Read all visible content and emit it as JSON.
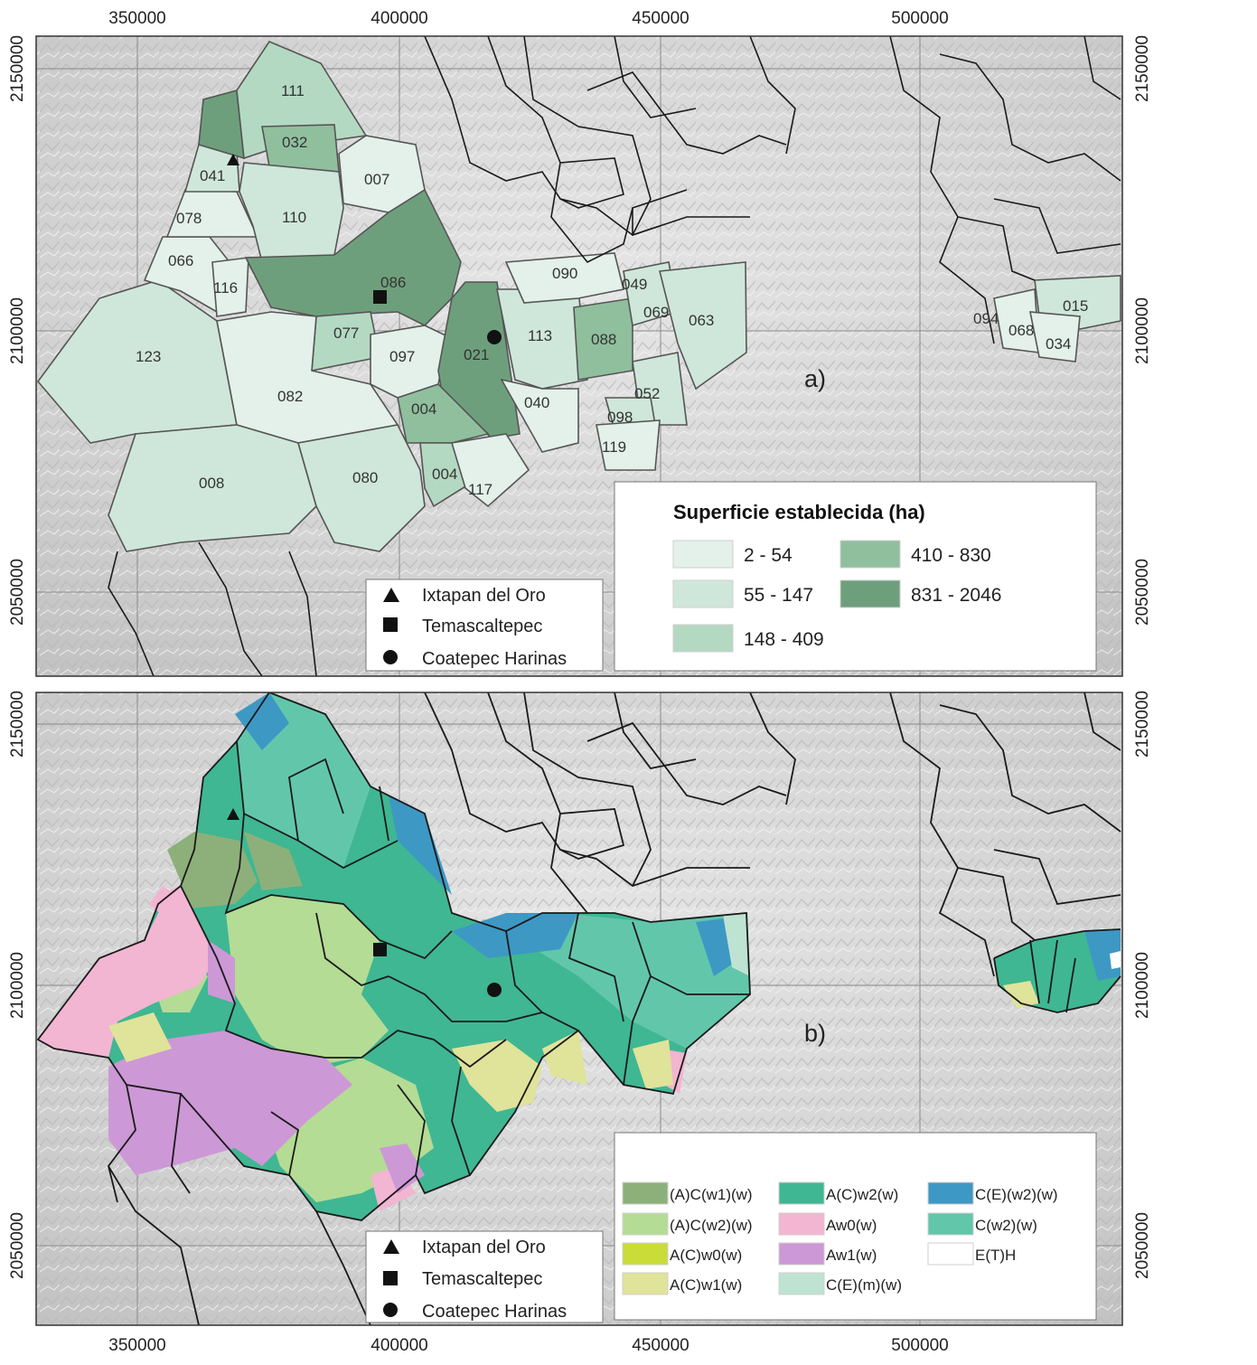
{
  "x_ticks": [
    "350000",
    "400000",
    "450000",
    "500000"
  ],
  "y_ticks": [
    "2150000",
    "2100000",
    "2050000"
  ],
  "panel_a": {
    "tag": "a)",
    "legend_title": "Superficie establecida (ha)",
    "classes": [
      {
        "label": "2 - 54",
        "color": "#e3f1ea"
      },
      {
        "label": "55 - 147",
        "color": "#cfe7da"
      },
      {
        "label": "148 - 409",
        "color": "#b4d9c2"
      },
      {
        "label": "410 - 830",
        "color": "#90bf9e"
      },
      {
        "label": "831 - 2046",
        "color": "#6e9f7c"
      }
    ],
    "municipalities": [
      "111",
      "032",
      "041",
      "007",
      "078",
      "110",
      "066",
      "116",
      "086",
      "090",
      "049",
      "123",
      "077",
      "021",
      "113",
      "088",
      "069",
      "063",
      "097",
      "082",
      "004",
      "040",
      "052",
      "098",
      "119",
      "008",
      "080",
      "004",
      "117",
      "094",
      "068",
      "034",
      "015"
    ]
  },
  "panel_b": {
    "tag": "b)",
    "climates": [
      {
        "label": "(A)C(w1)(w)",
        "color": "#8db07a"
      },
      {
        "label": "(A)C(w2)(w)",
        "color": "#b4dc94"
      },
      {
        "label": "A(C)w0(w)",
        "color": "#c9dc37"
      },
      {
        "label": "A(C)w1(w)",
        "color": "#e0e39a"
      },
      {
        "label": "A(C)w2(w)",
        "color": "#3fb792"
      },
      {
        "label": "Aw0(w)",
        "color": "#f2b5d2"
      },
      {
        "label": "Aw1(w)",
        "color": "#cd98d6"
      },
      {
        "label": "C(E)(m)(w)",
        "color": "#bfe3d3"
      },
      {
        "label": "C(E)(w2)(w)",
        "color": "#3e98c4"
      },
      {
        "label": "C(w2)(w)",
        "color": "#62c7aa"
      },
      {
        "label": "E(T)H",
        "color": "#ffffff"
      }
    ]
  },
  "localities": [
    "Ixtapan del Oro",
    "Temascaltepec",
    "Coatepec Harinas"
  ],
  "colors": {
    "hillshade": "#dcdcdc",
    "boundary": "#1a1a1a"
  }
}
